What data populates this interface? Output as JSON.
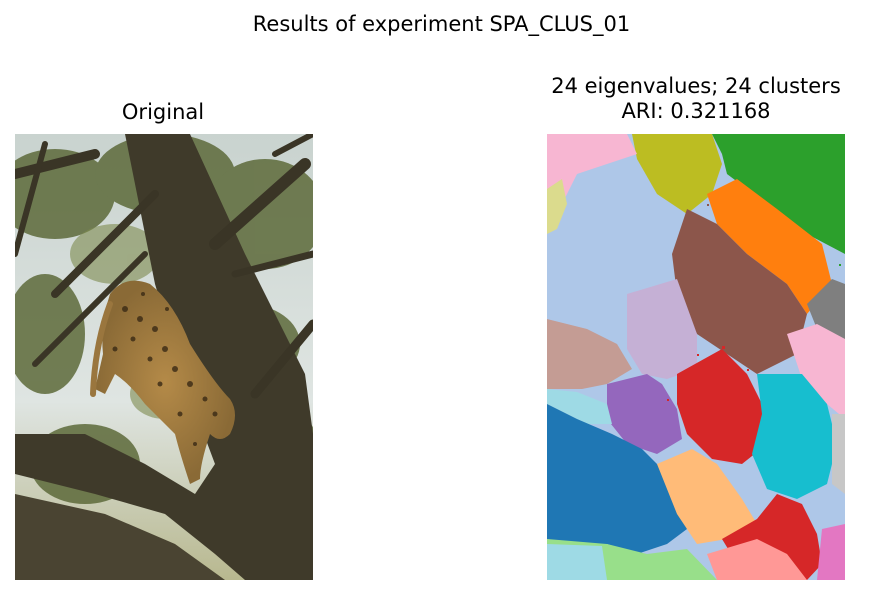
{
  "figure": {
    "suptitle": "Results of experiment SPA_CLUS_01",
    "left_title": "Original",
    "right_title_line1": "24 eigenvalues; 24 clusters",
    "right_title_line2": "ARI: 0.321168"
  },
  "images": {
    "original": "photo of a leopard climbing down a tree trunk among leafy branches",
    "segmentation": "spectral clustering label map rendered in tab20 colors"
  },
  "palette": {
    "light-blue": "#aec7e8",
    "pink": "#f7b6d2",
    "olive": "#bcbd22",
    "green": "#2ca02c",
    "khaki": "#dbdb8d",
    "orange": "#ff7f0e",
    "brown": "#8c564b",
    "gray": "#7f7f7f",
    "lavender": "#c5b0d5",
    "rose-tan": "#c49c94",
    "red": "#d62728",
    "cyan": "#17becf",
    "purple": "#9467bd",
    "pale-cyan": "#9edae5",
    "blue": "#1f77b4",
    "peach": "#ffbb78",
    "light-green": "#98df8a",
    "salmon": "#ff9896",
    "magenta": "#e377c2",
    "light-gray": "#c7c7c7"
  }
}
